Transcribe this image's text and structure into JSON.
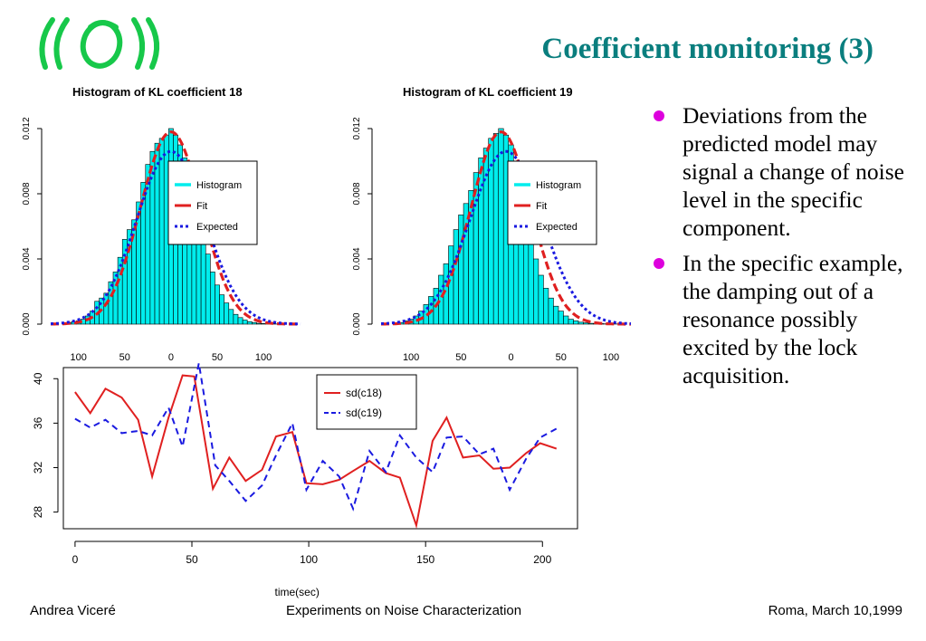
{
  "slide": {
    "title": "Coefficient monitoring (3)",
    "bullets": [
      "Deviations from the predicted model may signal a change of noise level in the specific component.",
      "In the specific example, the damping out of a resonance possibly excited by the lock acquisition."
    ]
  },
  "footer": {
    "left": "Andrea Viceré",
    "center": "Experiments on Noise Characterization",
    "right": "Roma, March 10,1999"
  },
  "colors": {
    "title": "#0a7e7e",
    "logo": "#17c84a",
    "bullet": "#dd00dd",
    "bar": "#00eded",
    "fit": "#e02020",
    "expected": "#1a1ae0"
  },
  "chart_data": [
    {
      "type": "bar",
      "title": "Histogram of KL coefficient  18",
      "xlabel": "",
      "ylabel": "",
      "x_ticks": [
        "100",
        "50",
        "0",
        "50",
        "100"
      ],
      "y_ticks": [
        "0.000",
        "0.004",
        "0.008",
        "0.012"
      ],
      "xlim": [
        -130,
        140
      ],
      "ylim": [
        0,
        0.012
      ],
      "legend": {
        "position": "upper-right",
        "entries": [
          "Histogram",
          "Fit",
          "Expected"
        ]
      },
      "series": [
        {
          "name": "Histogram",
          "kind": "bars",
          "bin_width": 5,
          "x": [
            -115,
            -110,
            -105,
            -100,
            -95,
            -90,
            -85,
            -80,
            -75,
            -70,
            -65,
            -60,
            -55,
            -50,
            -45,
            -40,
            -35,
            -30,
            -25,
            -20,
            -15,
            -10,
            -5,
            0,
            5,
            10,
            15,
            20,
            25,
            30,
            35,
            40,
            45,
            50,
            55,
            60,
            65,
            70,
            75,
            80,
            85,
            90,
            95,
            100,
            105,
            110,
            115,
            120
          ],
          "values": [
            5e-05,
            0.0001,
            0.00015,
            0.0002,
            0.0003,
            0.0005,
            0.0008,
            0.0014,
            0.0016,
            0.0019,
            0.0026,
            0.0032,
            0.0041,
            0.0052,
            0.0058,
            0.0064,
            0.0075,
            0.0087,
            0.0098,
            0.0106,
            0.0111,
            0.0114,
            0.0116,
            0.012,
            0.0116,
            0.011,
            0.0102,
            0.0092,
            0.0078,
            0.0066,
            0.0054,
            0.0043,
            0.0032,
            0.0024,
            0.0018,
            0.0013,
            0.0009,
            0.0006,
            0.0004,
            0.00025,
            0.00015,
            0.0001,
            5e-05,
            4e-05,
            3e-05,
            2e-05,
            1e-05,
            1e-05
          ]
        },
        {
          "name": "Fit",
          "kind": "gaussian",
          "mean": 0,
          "sd": 33,
          "peak": 0.0118
        },
        {
          "name": "Expected",
          "kind": "gaussian",
          "mean": 0,
          "sd": 37,
          "peak": 0.0106
        }
      ]
    },
    {
      "type": "bar",
      "title": "Histogram of KL coefficient  19",
      "xlabel": "",
      "ylabel": "",
      "x_ticks": [
        "100",
        "50",
        "0",
        "50",
        "100"
      ],
      "y_ticks": [
        "0.000",
        "0.004",
        "0.008",
        "0.012"
      ],
      "xlim": [
        -130,
        120
      ],
      "ylim": [
        0,
        0.012
      ],
      "legend": {
        "position": "upper-right",
        "entries": [
          "Histogram",
          "Fit",
          "Expected"
        ]
      },
      "series": [
        {
          "name": "Histogram",
          "kind": "bars",
          "bin_width": 5,
          "x": [
            -115,
            -110,
            -105,
            -100,
            -95,
            -90,
            -85,
            -80,
            -75,
            -70,
            -65,
            -60,
            -55,
            -50,
            -45,
            -40,
            -35,
            -30,
            -25,
            -20,
            -15,
            -10,
            -5,
            0,
            5,
            10,
            15,
            20,
            25,
            30,
            35,
            40,
            45,
            50,
            55,
            60,
            65,
            70,
            75,
            80,
            85,
            90,
            95,
            100,
            105
          ],
          "values": [
            5e-05,
            0.0001,
            0.0002,
            0.0003,
            0.0005,
            0.0008,
            0.0012,
            0.0017,
            0.0022,
            0.003,
            0.0037,
            0.0048,
            0.0058,
            0.0067,
            0.0074,
            0.0082,
            0.0093,
            0.0102,
            0.0108,
            0.0114,
            0.0117,
            0.012,
            0.0116,
            0.011,
            0.0095,
            0.008,
            0.0066,
            0.0052,
            0.004,
            0.003,
            0.0022,
            0.0016,
            0.0011,
            0.0008,
            0.0005,
            0.0003,
            0.0002,
            0.00012,
            8e-05,
            5e-05,
            4e-05,
            3e-05,
            2e-05,
            1e-05,
            1e-05
          ]
        },
        {
          "name": "Fit",
          "kind": "gaussian",
          "mean": -10,
          "sd": 30,
          "peak": 0.0118
        },
        {
          "name": "Expected",
          "kind": "gaussian",
          "mean": -5,
          "sd": 36,
          "peak": 0.0106
        }
      ]
    },
    {
      "type": "line",
      "title": "",
      "xlabel": "time(sec)",
      "ylabel": "",
      "xlim": [
        -5,
        215
      ],
      "ylim": [
        26.5,
        41
      ],
      "x_ticks": [
        0,
        50,
        100,
        150,
        200
      ],
      "y_ticks": [
        28,
        32,
        36,
        40
      ],
      "legend": {
        "position": "top-right",
        "entries": [
          "sd(c18)",
          "sd(c19)"
        ]
      },
      "series": [
        {
          "name": "sd(c18)",
          "style": "solid",
          "x": [
            0,
            6.5,
            13,
            20,
            27,
            33,
            40,
            46,
            51,
            59,
            66,
            73,
            80,
            86,
            93,
            99,
            106,
            113,
            119,
            126,
            133,
            139,
            146,
            153,
            159,
            166,
            173,
            179,
            186,
            193,
            199,
            206
          ],
          "y": [
            38.8,
            36.9,
            39.1,
            38.3,
            36.3,
            31.2,
            36.5,
            40.3,
            40.2,
            30.1,
            32.9,
            30.8,
            31.8,
            34.8,
            35.2,
            30.6,
            30.5,
            30.9,
            31.7,
            32.6,
            31.5,
            31.1,
            26.8,
            34.4,
            36.5,
            32.9,
            33.1,
            31.9,
            32,
            33.3,
            34.2,
            33.7
          ]
        },
        {
          "name": "sd(c19)",
          "style": "dashed",
          "x": [
            0,
            6.5,
            13,
            20,
            27,
            33,
            40,
            46,
            53,
            60,
            66,
            73,
            80,
            86,
            93,
            99,
            106,
            113,
            119,
            126,
            133,
            139,
            146,
            153,
            159,
            166,
            173,
            179,
            186,
            193,
            199,
            206
          ],
          "y": [
            36.4,
            35.6,
            36.3,
            35.1,
            35.3,
            34.9,
            37.4,
            33.9,
            41.4,
            32.2,
            30.8,
            29.0,
            30.4,
            33.1,
            36,
            30,
            32.6,
            31.2,
            28.3,
            33.5,
            31.6,
            34.9,
            32.9,
            31.6,
            34.7,
            34.8,
            33.2,
            33.7,
            30,
            32.8,
            34.7,
            35.5
          ]
        }
      ]
    }
  ]
}
